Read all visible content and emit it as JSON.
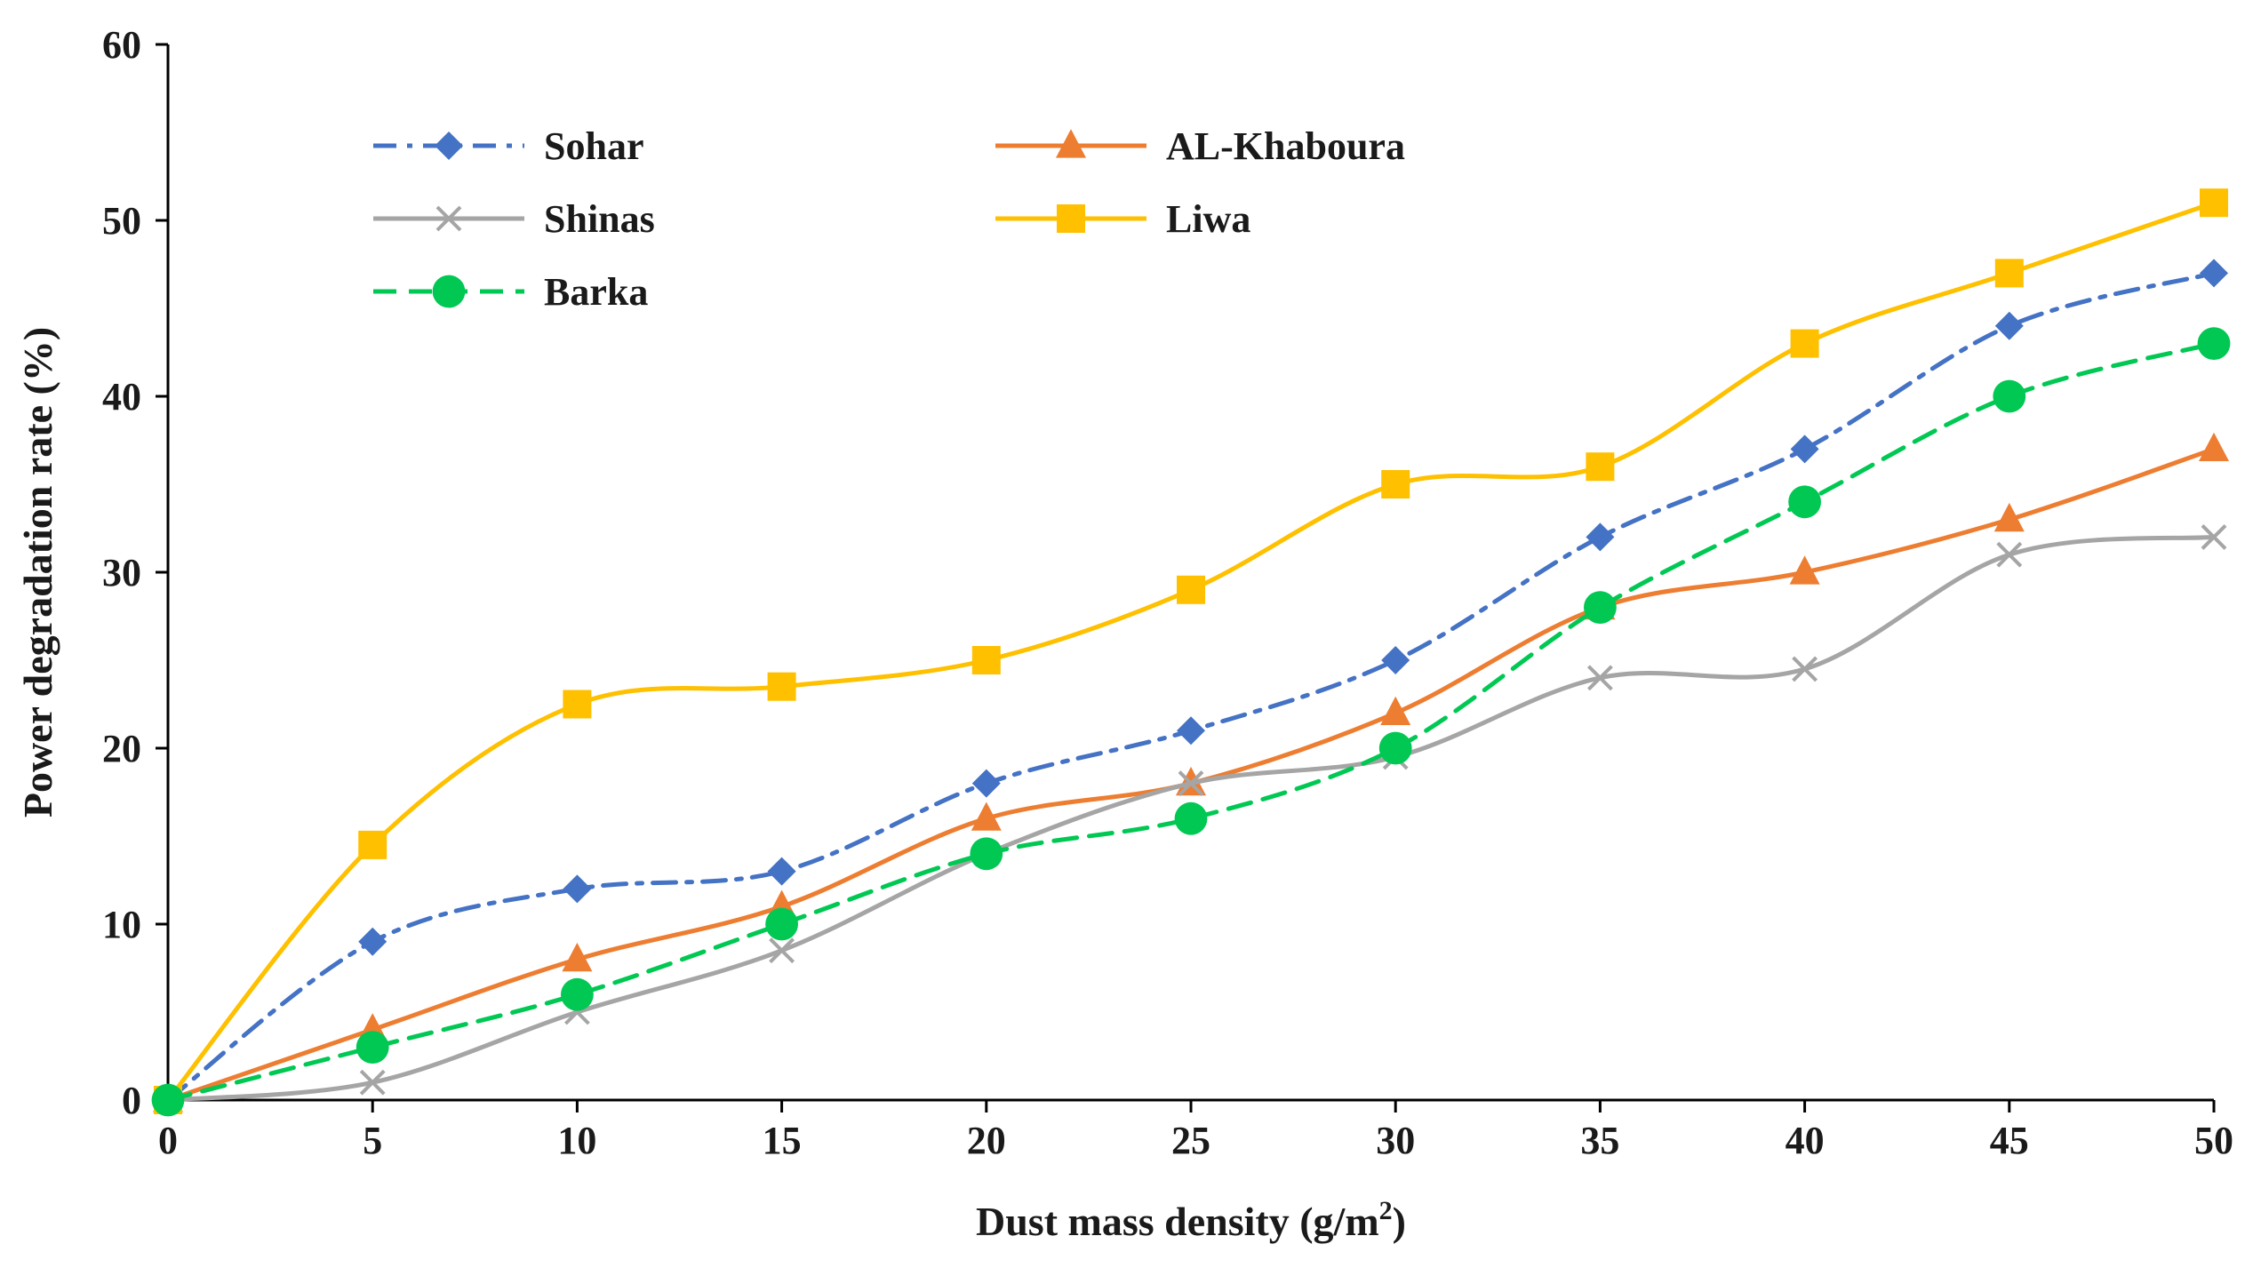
{
  "chart_data": {
    "type": "line",
    "title": "",
    "xlabel": "Dust mass density (g/m",
    "xlabel_sup": "2",
    "xlabel_end": ")",
    "ylabel": "Power degradation rate (%)",
    "x": [
      0,
      5,
      10,
      15,
      20,
      25,
      30,
      35,
      40,
      45,
      50
    ],
    "xlim": [
      0,
      50
    ],
    "ylim": [
      0,
      60
    ],
    "xticks": [
      0,
      5,
      10,
      15,
      20,
      25,
      30,
      35,
      40,
      45,
      50
    ],
    "yticks": [
      0,
      10,
      20,
      30,
      40,
      50,
      60
    ],
    "grid": false,
    "legend_position": "top-left",
    "series": [
      {
        "name": "Sohar",
        "color": "#4472C4",
        "marker": "diamond",
        "dash": "dashdot",
        "smooth": true,
        "values": [
          0,
          9,
          12,
          13,
          18,
          21,
          25,
          32,
          37,
          44,
          47
        ]
      },
      {
        "name": "AL-Khaboura",
        "color": "#ED7D31",
        "marker": "triangle",
        "dash": "solid",
        "smooth": true,
        "values": [
          0,
          4,
          8,
          11,
          16,
          18,
          22,
          28,
          30,
          33,
          37
        ]
      },
      {
        "name": "Shinas",
        "color": "#A5A5A5",
        "marker": "x",
        "dash": "solid",
        "smooth": true,
        "values": [
          0,
          1,
          5,
          8.5,
          14,
          18,
          19.5,
          24,
          24.5,
          31,
          32
        ]
      },
      {
        "name": "Liwa",
        "color": "#FFC000",
        "marker": "square",
        "dash": "solid",
        "smooth": true,
        "values": [
          0,
          14.5,
          22.5,
          23.5,
          25,
          29,
          35,
          36,
          43,
          47,
          51
        ]
      },
      {
        "name": "Barka",
        "color": "#00C853",
        "marker": "circle",
        "dash": "dashed",
        "smooth": true,
        "values": [
          0,
          3,
          6,
          10,
          14,
          16,
          20,
          28,
          34,
          40,
          43
        ]
      }
    ]
  }
}
